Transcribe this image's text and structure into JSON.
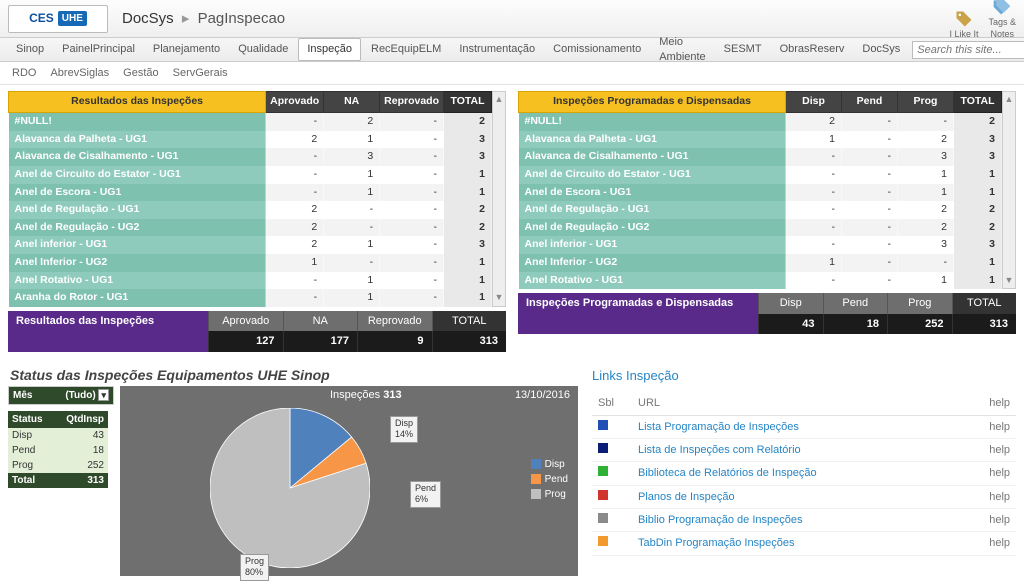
{
  "header": {
    "logo_ces": "CES",
    "logo_uhe": "UHE",
    "site": "DocSys",
    "page": "PagInspecao",
    "like_label": "I Like It",
    "tags_label": "Tags &\nNotes"
  },
  "topnav": {
    "items": [
      "Sinop",
      "PainelPrincipal",
      "Planejamento",
      "Qualidade",
      "Inspeção",
      "RecEquipELM",
      "Instrumentação",
      "Comissionamento",
      "Meio Ambiente",
      "SESMT",
      "ObrasReserv",
      "DocSys"
    ],
    "active_index": 4,
    "search_placeholder": "Search this site..."
  },
  "subnav": {
    "items": [
      "RDO",
      "AbrevSiglas",
      "Gestão",
      "ServGerais"
    ]
  },
  "left_table": {
    "title": "Resultados das Inspeções",
    "cols": [
      "Aprovado",
      "NA",
      "Reprovado",
      "TOTAL"
    ],
    "rows": [
      {
        "label": "#NULL!",
        "v": [
          "-",
          "2",
          "-",
          "2"
        ]
      },
      {
        "label": "Alavanca da Palheta - UG1",
        "v": [
          "2",
          "1",
          "-",
          "3"
        ]
      },
      {
        "label": "Alavanca de Cisalhamento - UG1",
        "v": [
          "-",
          "3",
          "-",
          "3"
        ]
      },
      {
        "label": "Anel de Circuito do Estator - UG1",
        "v": [
          "-",
          "1",
          "-",
          "1"
        ]
      },
      {
        "label": "Anel de Escora - UG1",
        "v": [
          "-",
          "1",
          "-",
          "1"
        ]
      },
      {
        "label": "Anel de Regulação - UG1",
        "v": [
          "2",
          "-",
          "-",
          "2"
        ]
      },
      {
        "label": "Anel de Regulação - UG2",
        "v": [
          "2",
          "-",
          "-",
          "2"
        ]
      },
      {
        "label": "Anel inferior - UG1",
        "v": [
          "2",
          "1",
          "-",
          "3"
        ]
      },
      {
        "label": "Anel Inferior - UG2",
        "v": [
          "1",
          "-",
          "-",
          "1"
        ]
      },
      {
        "label": "Anel Rotativo - UG1",
        "v": [
          "-",
          "1",
          "-",
          "1"
        ]
      },
      {
        "label": "Aranha do Rotor - UG1",
        "v": [
          "-",
          "1",
          "-",
          "1"
        ]
      }
    ]
  },
  "left_summary": {
    "title": "Resultados das Inspeções",
    "cols": [
      "Aprovado",
      "NA",
      "Reprovado",
      "TOTAL"
    ],
    "vals": [
      "127",
      "177",
      "9",
      "313"
    ]
  },
  "right_table": {
    "title": "Inspeções Programadas e Dispensadas",
    "cols": [
      "Disp",
      "Pend",
      "Prog",
      "TOTAL"
    ],
    "rows": [
      {
        "label": "#NULL!",
        "v": [
          "2",
          "-",
          "-",
          "2"
        ]
      },
      {
        "label": "Alavanca da Palheta - UG1",
        "v": [
          "1",
          "-",
          "2",
          "3"
        ]
      },
      {
        "label": "Alavanca de Cisalhamento - UG1",
        "v": [
          "-",
          "-",
          "3",
          "3"
        ]
      },
      {
        "label": "Anel de Circuito do Estator - UG1",
        "v": [
          "-",
          "-",
          "1",
          "1"
        ]
      },
      {
        "label": "Anel de Escora - UG1",
        "v": [
          "-",
          "-",
          "1",
          "1"
        ]
      },
      {
        "label": "Anel de Regulação - UG1",
        "v": [
          "-",
          "-",
          "2",
          "2"
        ]
      },
      {
        "label": "Anel de Regulação - UG2",
        "v": [
          "-",
          "-",
          "2",
          "2"
        ]
      },
      {
        "label": "Anel inferior - UG1",
        "v": [
          "-",
          "-",
          "3",
          "3"
        ]
      },
      {
        "label": "Anel Inferior - UG2",
        "v": [
          "1",
          "-",
          "-",
          "1"
        ]
      },
      {
        "label": "Anel Rotativo - UG1",
        "v": [
          "-",
          "-",
          "1",
          "1"
        ]
      }
    ]
  },
  "right_summary": {
    "title": "Inspeções Programadas e Dispensadas",
    "cols": [
      "Disp",
      "Pend",
      "Prog",
      "TOTAL"
    ],
    "vals": [
      "43",
      "18",
      "252",
      "313"
    ]
  },
  "chart": {
    "title": "Status das Inspeções Equipamentos UHE Sinop",
    "mes_label": "Mês",
    "mes_value": "(Tudo)",
    "status_header": "Status",
    "qtd_header": "QtdInsp",
    "total_label": "Total",
    "rows": [
      {
        "k": "Disp",
        "v": "43"
      },
      {
        "k": "Pend",
        "v": "18"
      },
      {
        "k": "Prog",
        "v": "252"
      }
    ],
    "total_value": "313",
    "insp_label_prefix": "Inspeções",
    "insp_value": "313",
    "date": "13/10/2016",
    "slices": [
      {
        "label": "Prog",
        "pct": "80%",
        "color": "#bfbfbf"
      },
      {
        "label": "Disp",
        "pct": "14%",
        "color": "#4f81bd"
      },
      {
        "label": "Pend",
        "pct": "6%",
        "color": "#f79646"
      }
    ],
    "legend": [
      "Disp",
      "Pend",
      "Prog"
    ],
    "legend_colors": [
      "#4f81bd",
      "#f79646",
      "#bfbfbf"
    ]
  },
  "links": {
    "title": "Links Inspeção",
    "col_sbl": "Sbl",
    "col_url": "URL",
    "col_help": "help",
    "rows": [
      {
        "color": "#1f4fb5",
        "label": "Lista Programação de Inspeções"
      },
      {
        "color": "#0b1e77",
        "label": "Lista de Inspeções com Relatório"
      },
      {
        "color": "#2eb135",
        "label": "Biblioteca de Relatórios de Inspeção"
      },
      {
        "color": "#d0342c",
        "label": "Planos de Inspeção"
      },
      {
        "color": "#8a8a8a",
        "label": "Biblio Programação de Inspeções"
      },
      {
        "color": "#f29a2e",
        "label": "TabDin Programação Inspeções"
      }
    ]
  }
}
